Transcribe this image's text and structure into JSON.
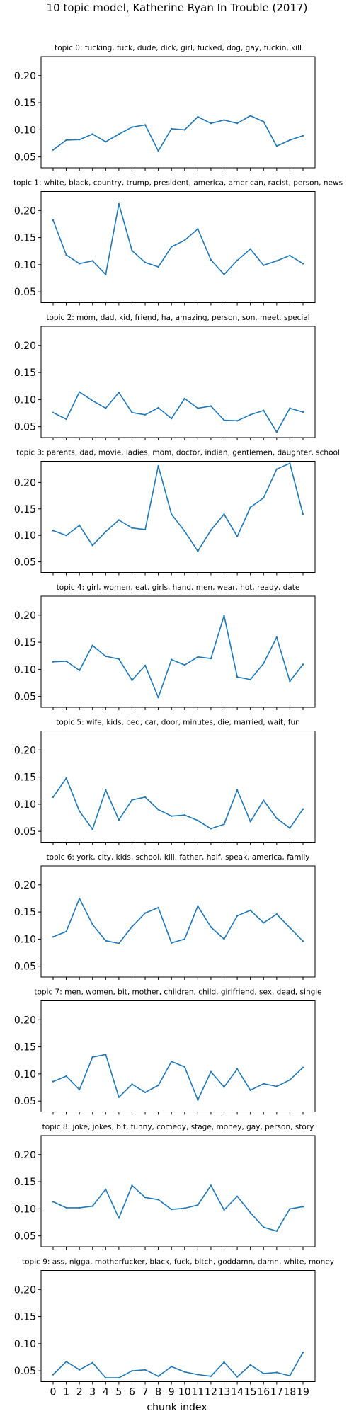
{
  "figure": {
    "title": "10 topic model, Katherine Ryan In Trouble (2017)",
    "xlabel": "chunk index",
    "line_color": "#1f77b4"
  },
  "chart_data": [
    {
      "type": "line",
      "title": "topic 0: fucking, fuck, dude, dick, girl, fucked, dog, gay, fuckin, kill",
      "x": [
        0,
        1,
        2,
        3,
        4,
        5,
        6,
        7,
        8,
        9,
        10,
        11,
        12,
        13,
        14,
        15,
        16,
        17,
        18,
        19
      ],
      "values": [
        0.063,
        0.081,
        0.082,
        0.092,
        0.078,
        0.092,
        0.105,
        0.109,
        0.061,
        0.102,
        0.1,
        0.124,
        0.112,
        0.118,
        0.112,
        0.126,
        0.115,
        0.07,
        0.081,
        0.089
      ],
      "ylim": [
        0.03,
        0.235
      ],
      "yticks": [
        "0.05",
        "0.10",
        "0.15",
        "0.20"
      ],
      "xlabel": "",
      "ylabel": ""
    },
    {
      "type": "line",
      "title": "topic 1: white, black, country, trump, president, america, american, racist, person, news",
      "x": [
        0,
        1,
        2,
        3,
        4,
        5,
        6,
        7,
        8,
        9,
        10,
        11,
        12,
        13,
        14,
        15,
        16,
        17,
        18,
        19
      ],
      "values": [
        0.182,
        0.118,
        0.102,
        0.107,
        0.082,
        0.212,
        0.126,
        0.104,
        0.096,
        0.133,
        0.145,
        0.166,
        0.109,
        0.082,
        0.108,
        0.129,
        0.099,
        0.107,
        0.117,
        0.102
      ],
      "ylim": [
        0.03,
        0.235
      ],
      "yticks": [
        "0.05",
        "0.10",
        "0.15",
        "0.20"
      ],
      "xlabel": "",
      "ylabel": ""
    },
    {
      "type": "line",
      "title": "topic 2: mom, dad, kid, friend, ha, amazing, person, son, meet, special",
      "x": [
        0,
        1,
        2,
        3,
        4,
        5,
        6,
        7,
        8,
        9,
        10,
        11,
        12,
        13,
        14,
        15,
        16,
        17,
        18,
        19
      ],
      "values": [
        0.076,
        0.064,
        0.114,
        0.098,
        0.084,
        0.113,
        0.076,
        0.072,
        0.085,
        0.065,
        0.102,
        0.084,
        0.088,
        0.062,
        0.061,
        0.072,
        0.08,
        0.04,
        0.084,
        0.077
      ],
      "ylim": [
        0.03,
        0.235
      ],
      "yticks": [
        "0.05",
        "0.10",
        "0.15",
        "0.20"
      ],
      "xlabel": "",
      "ylabel": ""
    },
    {
      "type": "line",
      "title": "topic 3: parents, dad, movie, ladies, mom, doctor, indian, gentlemen, daughter, school",
      "x": [
        0,
        1,
        2,
        3,
        4,
        5,
        6,
        7,
        8,
        9,
        10,
        11,
        12,
        13,
        14,
        15,
        16,
        17,
        18,
        19
      ],
      "values": [
        0.109,
        0.1,
        0.119,
        0.081,
        0.107,
        0.129,
        0.114,
        0.111,
        0.231,
        0.14,
        0.108,
        0.07,
        0.11,
        0.14,
        0.098,
        0.153,
        0.171,
        0.225,
        0.236,
        0.14
      ],
      "ylim": [
        0.03,
        0.24
      ],
      "yticks": [
        "0.05",
        "0.10",
        "0.15",
        "0.20"
      ],
      "xlabel": "",
      "ylabel": ""
    },
    {
      "type": "line",
      "title": "topic 4: girl, women, eat, girls, hand, men, wear, hot, ready, date",
      "x": [
        0,
        1,
        2,
        3,
        4,
        5,
        6,
        7,
        8,
        9,
        10,
        11,
        12,
        13,
        14,
        15,
        16,
        17,
        18,
        19
      ],
      "values": [
        0.114,
        0.115,
        0.098,
        0.144,
        0.124,
        0.119,
        0.08,
        0.107,
        0.048,
        0.118,
        0.108,
        0.123,
        0.12,
        0.199,
        0.086,
        0.081,
        0.111,
        0.159,
        0.078,
        0.109
      ],
      "ylim": [
        0.03,
        0.235
      ],
      "yticks": [
        "0.05",
        "0.10",
        "0.15",
        "0.20"
      ],
      "xlabel": "",
      "ylabel": ""
    },
    {
      "type": "line",
      "title": "topic 5: wife, kids, bed, car, door, minutes, die, married, wait, fun",
      "x": [
        0,
        1,
        2,
        3,
        4,
        5,
        6,
        7,
        8,
        9,
        10,
        11,
        12,
        13,
        14,
        15,
        16,
        17,
        18,
        19
      ],
      "values": [
        0.113,
        0.148,
        0.087,
        0.054,
        0.126,
        0.071,
        0.108,
        0.113,
        0.09,
        0.078,
        0.08,
        0.07,
        0.055,
        0.063,
        0.126,
        0.068,
        0.107,
        0.074,
        0.056,
        0.091
      ],
      "ylim": [
        0.03,
        0.235
      ],
      "yticks": [
        "0.05",
        "0.10",
        "0.15",
        "0.20"
      ],
      "xlabel": "",
      "ylabel": ""
    },
    {
      "type": "line",
      "title": "topic 6: york, city, kids, school, kill, father, half, speak, america, family",
      "x": [
        0,
        1,
        2,
        3,
        4,
        5,
        6,
        7,
        8,
        9,
        10,
        11,
        12,
        13,
        14,
        15,
        16,
        17,
        18,
        19
      ],
      "values": [
        0.104,
        0.114,
        0.175,
        0.127,
        0.097,
        0.092,
        0.123,
        0.148,
        0.158,
        0.093,
        0.1,
        0.161,
        0.122,
        0.1,
        0.143,
        0.153,
        0.13,
        0.146,
        0.121,
        0.096
      ],
      "ylim": [
        0.03,
        0.235
      ],
      "yticks": [
        "0.05",
        "0.10",
        "0.15",
        "0.20"
      ],
      "xlabel": "",
      "ylabel": ""
    },
    {
      "type": "line",
      "title": "topic 7: men, women, bit, mother, children, child, girlfriend, sex, dead, single",
      "x": [
        0,
        1,
        2,
        3,
        4,
        5,
        6,
        7,
        8,
        9,
        10,
        11,
        12,
        13,
        14,
        15,
        16,
        17,
        18,
        19
      ],
      "values": [
        0.086,
        0.096,
        0.071,
        0.131,
        0.136,
        0.057,
        0.081,
        0.066,
        0.079,
        0.123,
        0.113,
        0.052,
        0.104,
        0.076,
        0.109,
        0.07,
        0.082,
        0.077,
        0.089,
        0.112
      ],
      "ylim": [
        0.03,
        0.235
      ],
      "yticks": [
        "0.05",
        "0.10",
        "0.15",
        "0.20"
      ],
      "xlabel": "",
      "ylabel": ""
    },
    {
      "type": "line",
      "title": "topic 8: joke, jokes, bit, funny, comedy, stage, money, gay, person, story",
      "x": [
        0,
        1,
        2,
        3,
        4,
        5,
        6,
        7,
        8,
        9,
        10,
        11,
        12,
        13,
        14,
        15,
        16,
        17,
        18,
        19
      ],
      "values": [
        0.113,
        0.102,
        0.102,
        0.105,
        0.136,
        0.083,
        0.143,
        0.121,
        0.117,
        0.099,
        0.101,
        0.107,
        0.143,
        0.098,
        0.123,
        0.093,
        0.066,
        0.059,
        0.1,
        0.104
      ],
      "ylim": [
        0.03,
        0.235
      ],
      "yticks": [
        "0.05",
        "0.10",
        "0.15",
        "0.20"
      ],
      "xlabel": "",
      "ylabel": ""
    },
    {
      "type": "line",
      "title": "topic 9: ass, nigga, motherfucker, black, fuck, bitch, goddamn, damn, white, money",
      "x": [
        0,
        1,
        2,
        3,
        4,
        5,
        6,
        7,
        8,
        9,
        10,
        11,
        12,
        13,
        14,
        15,
        16,
        17,
        18,
        19
      ],
      "values": [
        0.043,
        0.067,
        0.052,
        0.065,
        0.037,
        0.037,
        0.05,
        0.052,
        0.04,
        0.058,
        0.048,
        0.043,
        0.04,
        0.066,
        0.039,
        0.061,
        0.045,
        0.047,
        0.041,
        0.084
      ],
      "ylim": [
        0.03,
        0.235
      ],
      "yticks": [
        "0.05",
        "0.10",
        "0.15",
        "0.20"
      ],
      "xlabel": "chunk index",
      "ylabel": ""
    }
  ]
}
